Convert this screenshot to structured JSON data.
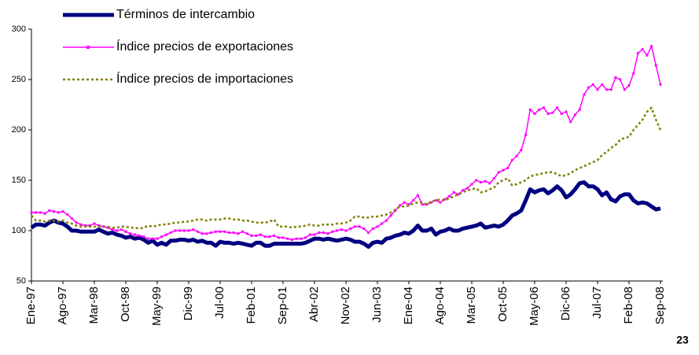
{
  "chart_data": {
    "type": "line",
    "annotation": "23",
    "categories": [
      "Ene-97",
      null,
      null,
      null,
      null,
      null,
      null,
      "Ago-97",
      null,
      null,
      null,
      null,
      null,
      null,
      "Mar-98",
      null,
      null,
      null,
      null,
      null,
      null,
      "Oct-98",
      null,
      null,
      null,
      null,
      null,
      null,
      "May-99",
      null,
      null,
      null,
      null,
      null,
      null,
      "Dic-99",
      null,
      null,
      null,
      null,
      null,
      null,
      "Jul-00",
      null,
      null,
      null,
      null,
      null,
      null,
      "Feb-01",
      null,
      null,
      null,
      null,
      null,
      null,
      "Sep-01",
      null,
      null,
      null,
      null,
      null,
      null,
      "Abr-02",
      null,
      null,
      null,
      null,
      null,
      null,
      "Nov-02",
      null,
      null,
      null,
      null,
      null,
      null,
      "Jun-03",
      null,
      null,
      null,
      null,
      null,
      null,
      "Ene-04",
      null,
      null,
      null,
      null,
      null,
      null,
      "Ago-04",
      null,
      null,
      null,
      null,
      null,
      null,
      "Mar-05",
      null,
      null,
      null,
      null,
      null,
      null,
      "Oct-05",
      null,
      null,
      null,
      null,
      null,
      null,
      "May-06",
      null,
      null,
      null,
      null,
      null,
      null,
      "Dic-06",
      null,
      null,
      null,
      null,
      null,
      null,
      "Jul-07",
      null,
      null,
      null,
      null,
      null,
      null,
      "Feb-08",
      null,
      null,
      null,
      null,
      null,
      null,
      "Sep-08"
    ],
    "series": [
      {
        "name": "Términos de intercambio",
        "color": "#000080",
        "linewidth": 5,
        "style": "solid",
        "values": [
          103,
          106,
          106,
          105,
          108,
          110,
          108,
          107,
          104,
          100,
          100,
          99,
          99,
          99,
          99,
          101,
          99,
          97,
          98,
          96,
          95,
          93,
          94,
          92,
          93,
          91,
          88,
          90,
          86,
          88,
          86,
          90,
          90,
          91,
          91,
          90,
          91,
          89,
          90,
          88,
          88,
          85,
          89,
          88,
          88,
          87,
          88,
          87,
          86,
          85,
          88,
          88,
          85,
          85,
          87,
          87,
          87,
          87,
          87,
          87,
          87,
          88,
          90,
          92,
          92,
          91,
          92,
          91,
          90,
          91,
          92,
          91,
          89,
          89,
          87,
          84,
          88,
          89,
          88,
          92,
          93,
          95,
          96,
          98,
          97,
          100,
          105,
          100,
          100,
          102,
          96,
          99,
          100,
          102,
          100,
          100,
          102,
          103,
          104,
          105,
          107,
          103,
          104,
          105,
          104,
          106,
          110,
          115,
          117,
          120,
          130,
          141,
          138,
          140,
          141,
          137,
          140,
          144,
          140,
          133,
          136,
          141,
          147,
          148,
          144,
          144,
          141,
          135,
          138,
          131,
          129,
          134,
          136,
          136,
          130,
          127,
          128,
          127,
          124,
          121,
          122
        ]
      },
      {
        "name": "Índice precios de exportaciones",
        "color": "#ff00ff",
        "linewidth": 1.5,
        "style": "solid",
        "marker": "square",
        "values": [
          118,
          118,
          118,
          117,
          120,
          119,
          118,
          119,
          116,
          112,
          108,
          106,
          105,
          105,
          107,
          105,
          104,
          103,
          101,
          100,
          101,
          99,
          97,
          96,
          95,
          94,
          92,
          92,
          92,
          94,
          96,
          98,
          100,
          100,
          100,
          100,
          101,
          99,
          97,
          97,
          98,
          99,
          99,
          99,
          98,
          98,
          97,
          99,
          97,
          95,
          95,
          96,
          94,
          94,
          95,
          93,
          93,
          92,
          91,
          92,
          92,
          93,
          96,
          96,
          98,
          98,
          97,
          99,
          100,
          101,
          100,
          102,
          104,
          104,
          102,
          98,
          102,
          104,
          107,
          110,
          115,
          120,
          125,
          128,
          126,
          130,
          135,
          126,
          126,
          128,
          130,
          128,
          131,
          134,
          138,
          136,
          140,
          142,
          146,
          150,
          148,
          149,
          147,
          152,
          158,
          160,
          162,
          170,
          174,
          180,
          195,
          220,
          216,
          220,
          222,
          216,
          217,
          222,
          216,
          218,
          208,
          215,
          220,
          235,
          242,
          245,
          240,
          245,
          240,
          240,
          252,
          250,
          240,
          244,
          256,
          276,
          280,
          274,
          283,
          264,
          245
        ]
      },
      {
        "name": "Índice precios de importaciones",
        "color": "#808000",
        "linewidth": 2.5,
        "style": "dashed",
        "values": [
          115,
          110,
          110,
          109,
          110,
          110,
          109,
          110,
          108,
          107,
          105,
          104,
          104,
          104,
          104,
          104,
          104,
          104,
          103,
          103,
          104,
          104,
          103,
          103,
          102,
          103,
          105,
          104,
          105,
          106,
          106,
          107,
          108,
          108,
          109,
          109,
          110,
          111,
          111,
          110,
          111,
          111,
          111,
          112,
          112,
          111,
          111,
          110,
          110,
          109,
          108,
          108,
          108,
          109,
          111,
          104,
          104,
          104,
          103,
          104,
          104,
          105,
          106,
          105,
          105,
          106,
          106,
          106,
          107,
          107,
          108,
          110,
          114,
          114,
          113,
          113,
          114,
          114,
          115,
          116,
          118,
          121,
          124,
          124,
          125,
          127,
          128,
          128,
          126,
          129,
          130,
          131,
          130,
          132,
          134,
          136,
          138,
          140,
          141,
          142,
          138,
          139,
          141,
          143,
          148,
          150,
          152,
          145,
          146,
          148,
          150,
          154,
          155,
          156,
          157,
          158,
          158,
          156,
          154,
          155,
          157,
          160,
          162,
          164,
          166,
          168,
          170,
          175,
          178,
          182,
          185,
          190,
          192,
          193,
          200,
          205,
          210,
          218,
          222,
          210,
          200
        ]
      }
    ],
    "ylim": [
      50,
      300
    ],
    "yticks": [
      50,
      100,
      150,
      200,
      250,
      300
    ],
    "grid": false
  }
}
